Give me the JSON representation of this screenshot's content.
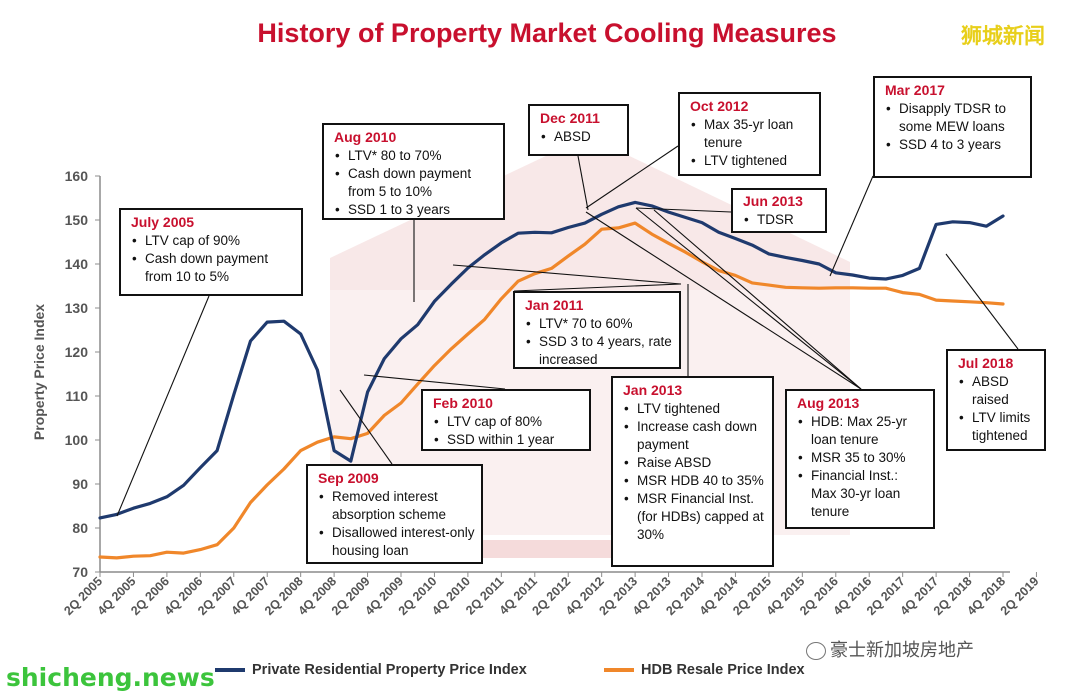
{
  "title": "History of Property Market Cooling Measures",
  "watermarks": {
    "top_right": "狮城新闻",
    "bottom_left": "shicheng.news",
    "bottom_right": "豪士新加坡房地产"
  },
  "legend": {
    "private": "Private Residential Property Price Index",
    "hdb": "HDB Resale Price Index"
  },
  "annotations": {
    "jul2005": {
      "date": "July 2005",
      "items": [
        "LTV cap of 90%",
        "Cash down payment from 10 to 5%"
      ]
    },
    "aug2010": {
      "date": "Aug 2010",
      "items": [
        "LTV* 80 to 70%",
        "Cash down payment from 5 to 10%",
        "SSD 1 to 3 years"
      ]
    },
    "dec2011": {
      "date": "Dec 2011",
      "items": [
        "ABSD"
      ]
    },
    "oct2012": {
      "date": "Oct 2012",
      "items": [
        "Max 35-yr loan tenure",
        "LTV tightened"
      ]
    },
    "mar2017": {
      "date": "Mar 2017",
      "items": [
        "Disapply TDSR to some MEW loans",
        "SSD 4 to 3 years"
      ]
    },
    "jun2013": {
      "date": "Jun 2013",
      "items": [
        "TDSR"
      ]
    },
    "jan2011": {
      "date": "Jan 2011",
      "items": [
        "LTV* 70 to 60%",
        "SSD 3 to 4 years, rate increased"
      ]
    },
    "feb2010": {
      "date": "Feb 2010",
      "items": [
        "LTV cap of 80%",
        "SSD within 1 year"
      ]
    },
    "sep2009": {
      "date": "Sep 2009",
      "items": [
        "Removed interest absorption scheme",
        "Disallowed interest-only housing loan"
      ]
    },
    "jan2013": {
      "date": "Jan 2013",
      "items": [
        "LTV tightened",
        "Increase cash down payment",
        "Raise ABSD",
        "MSR HDB 40 to 35%",
        "MSR Financial Inst. (for HDBs) capped at 30%"
      ]
    },
    "aug2013": {
      "date": "Aug 2013",
      "items": [
        "HDB: Max 25-yr loan tenure",
        "MSR 35 to 30%",
        "Financial Inst.: Max 30-yr loan tenure"
      ]
    },
    "jul2018": {
      "date": "Jul 2018",
      "items": [
        "ABSD raised",
        "LTV limits tightened"
      ]
    }
  },
  "chart_data": {
    "type": "line",
    "ylabel": "Property Price Index",
    "xlabel": "",
    "ylim": [
      70,
      160
    ],
    "yticks": [
      "70",
      "80",
      "90",
      "100",
      "110",
      "120",
      "130",
      "140",
      "150",
      "160"
    ],
    "x_start": "2Q 2005",
    "x_end": "2Q 2019",
    "xtick_labels": [
      "2Q 2005",
      "4Q 2005",
      "2Q 2006",
      "4Q 2006",
      "2Q 2007",
      "4Q 2007",
      "2Q 2008",
      "4Q 2008",
      "2Q 2009",
      "4Q 2009",
      "2Q 2010",
      "4Q 2010",
      "2Q 2011",
      "4Q 2011",
      "2Q 2012",
      "4Q 2012",
      "2Q 2013",
      "4Q 2013",
      "2Q 2014",
      "4Q 2014",
      "2Q 2015",
      "4Q 2015",
      "2Q 2016",
      "4Q 2016",
      "2Q 2017",
      "4Q 2017",
      "2Q 2018",
      "4Q 2018",
      "2Q 2019"
    ],
    "series": [
      {
        "name": "Private Residential Property Price Index",
        "color": "#1f3a6e",
        "values": [
          82.3,
          83.1,
          84.5,
          85.6,
          87.1,
          89.7,
          93.7,
          97.6,
          110.3,
          122.5,
          126.8,
          127.0,
          124.1,
          115.9,
          97.6,
          95.2,
          110.9,
          118.5,
          123.0,
          126.2,
          131.5,
          135.4,
          139.1,
          142.1,
          144.8,
          147.0,
          147.2,
          147.1,
          148.3,
          149.3,
          151.3,
          153.0,
          154.0,
          153.2,
          151.8,
          150.6,
          149.4,
          147.2,
          145.8,
          144.3,
          142.3,
          141.5,
          140.8,
          140.0,
          138.0,
          137.5,
          136.8,
          136.6,
          137.4,
          139.0,
          149.0,
          149.6,
          149.4,
          148.6,
          150.9
        ]
      },
      {
        "name": "HDB Resale Price Index",
        "color": "#f0872a",
        "values": [
          73.4,
          73.2,
          73.6,
          73.7,
          74.5,
          74.3,
          75.1,
          76.2,
          80.0,
          85.8,
          89.8,
          93.4,
          97.6,
          99.5,
          100.7,
          100.3,
          101.5,
          105.6,
          108.4,
          112.7,
          116.9,
          120.7,
          124.1,
          127.4,
          132.1,
          136.1,
          137.8,
          139.0,
          141.8,
          144.5,
          147.9,
          148.2,
          149.3,
          146.8,
          144.7,
          142.7,
          140.5,
          138.5,
          137.4,
          135.7,
          135.2,
          134.7,
          134.6,
          134.5,
          134.6,
          134.6,
          134.5,
          134.5,
          133.5,
          133.1,
          131.8,
          131.6,
          131.4,
          131.2,
          130.9
        ]
      }
    ],
    "grid": false,
    "legend": "bottom"
  }
}
